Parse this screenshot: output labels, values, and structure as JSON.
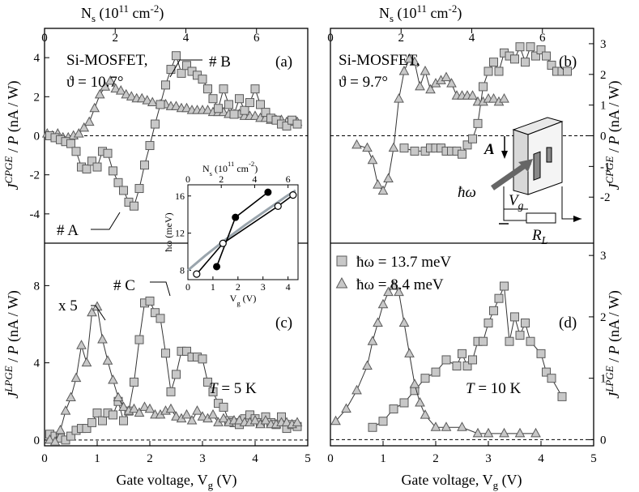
{
  "figure": {
    "top_axis_label": "N_s (10^11 cm^-2)",
    "bottom_axis_label": "Gate voltage, V_g (V)",
    "left_top_ylabel": "J CPGE / P (nA / W)",
    "left_bottom_ylabel": "J LPGE / P (nA / W)",
    "right_top_ylabel": "J CPGE / P (nA / W)",
    "right_bottom_ylabel": "J LPGE / P (nA / W)",
    "legend_sq": "ħω = 13.7 meV",
    "legend_tri": "ħω = 8.4 meV"
  },
  "chart_data": [
    {
      "id": "a",
      "type": "scatter",
      "panel_label": "(a)",
      "title": "Si-MOSFET,",
      "subtitle": "ϑ = 10.7°",
      "annotations": [
        "# B",
        "# A"
      ],
      "xlim": [
        0,
        5
      ],
      "ylim": [
        -5.5,
        5.5
      ],
      "x_ticks": [
        "0",
        "1",
        "2",
        "3",
        "4",
        "5"
      ],
      "y_ticks": [
        "-4",
        "-2",
        "0",
        "2",
        "4"
      ],
      "top_ticks": [
        "0",
        "2",
        "4",
        "6"
      ],
      "series": [
        {
          "name": "#A (triangles)",
          "marker": "triangle",
          "x": [
            0.05,
            0.15,
            0.25,
            0.35,
            0.45,
            0.55,
            0.65,
            0.75,
            0.85,
            0.95,
            1.05,
            1.15,
            1.25,
            1.35,
            1.45,
            1.55,
            1.65,
            1.75,
            1.85,
            1.95,
            2.05,
            2.2,
            2.3,
            2.4,
            2.5,
            2.6,
            2.7,
            2.8,
            2.9,
            3.0,
            3.1,
            3.2,
            3.3,
            3.4,
            3.5,
            3.6,
            3.7,
            3.8,
            3.9,
            4.0,
            4.1,
            4.2,
            4.3,
            4.4,
            4.5,
            4.6,
            4.7,
            4.8
          ],
          "y": [
            0.1,
            0.0,
            0.1,
            -0.1,
            -0.1,
            0.0,
            0.1,
            0.4,
            0.7,
            1.4,
            2.1,
            2.5,
            2.8,
            2.4,
            2.3,
            2.1,
            2.0,
            1.9,
            1.9,
            1.8,
            1.7,
            1.6,
            1.6,
            1.5,
            1.5,
            1.4,
            1.4,
            1.3,
            1.3,
            1.3,
            1.3,
            1.2,
            1.2,
            1.2,
            1.1,
            1.1,
            1.1,
            1.0,
            1.0,
            1.0,
            0.9,
            0.9,
            0.8,
            0.8,
            0.8,
            0.7,
            0.7,
            0.7
          ]
        },
        {
          "name": "#B (squares)",
          "marker": "square",
          "x": [
            0.1,
            0.2,
            0.3,
            0.4,
            0.5,
            0.6,
            0.7,
            0.8,
            0.9,
            1.0,
            1.1,
            1.2,
            1.3,
            1.4,
            1.5,
            1.6,
            1.7,
            1.8,
            1.9,
            2.0,
            2.1,
            2.2,
            2.3,
            2.4,
            2.5,
            2.6,
            2.7,
            2.8,
            2.9,
            3.0,
            3.1,
            3.2,
            3.3,
            3.4,
            3.5,
            3.6,
            3.7,
            3.8,
            3.9,
            4.0,
            4.1,
            4.2,
            4.3,
            4.4,
            4.5,
            4.6,
            4.7,
            4.8
          ],
          "y": [
            0.0,
            -0.1,
            -0.2,
            -0.3,
            -0.4,
            -0.8,
            -1.6,
            -1.7,
            -1.3,
            -1.6,
            -0.8,
            -0.9,
            -1.8,
            -2.4,
            -2.8,
            -3.4,
            -3.6,
            -2.7,
            -1.5,
            -0.5,
            0.6,
            1.6,
            2.6,
            3.4,
            4.1,
            3.2,
            3.6,
            3.3,
            3.1,
            2.9,
            2.4,
            1.9,
            1.4,
            2.4,
            1.6,
            1.1,
            1.9,
            1.3,
            1.7,
            2.4,
            1.6,
            1.2,
            0.9,
            0.8,
            0.6,
            0.5,
            0.8,
            0.6
          ]
        }
      ]
    },
    {
      "id": "b",
      "type": "scatter",
      "panel_label": "(b)",
      "title": "Si-MOSFET,",
      "subtitle": "ϑ = 9.7°",
      "xlim": [
        0,
        5
      ],
      "ylim": [
        -3.5,
        3.5
      ],
      "y_ticks": [
        "-2",
        "-1",
        "0",
        "1",
        "2",
        "3"
      ],
      "top_ticks": [
        "0",
        "2",
        "4",
        "6"
      ],
      "series": [
        {
          "name": "13.7 meV",
          "marker": "square",
          "x": [
            1.4,
            1.6,
            1.8,
            1.9,
            2.0,
            2.1,
            2.2,
            2.3,
            2.4,
            2.5,
            2.6,
            2.7,
            2.8,
            2.9,
            3.0,
            3.1,
            3.2,
            3.3,
            3.4,
            3.5,
            3.6,
            3.7,
            3.8,
            3.9,
            4.0,
            4.1,
            4.2,
            4.3,
            4.4,
            4.5
          ],
          "y": [
            -0.4,
            -0.5,
            -0.5,
            -0.4,
            -0.4,
            -0.4,
            -0.5,
            -0.5,
            -0.5,
            -0.6,
            -0.3,
            -0.1,
            0.4,
            1.6,
            2.1,
            2.4,
            2.1,
            2.7,
            2.6,
            2.5,
            2.9,
            2.4,
            2.9,
            2.6,
            2.8,
            2.6,
            2.3,
            2.1,
            2.1,
            2.1
          ]
        },
        {
          "name": "8.4 meV",
          "marker": "triangle",
          "x": [
            0.5,
            0.7,
            0.8,
            0.9,
            1.0,
            1.1,
            1.2,
            1.3,
            1.4,
            1.5,
            1.6,
            1.7,
            1.8,
            1.9,
            2.0,
            2.1,
            2.2,
            2.3,
            2.4,
            2.5,
            2.6,
            2.7,
            2.8,
            2.9,
            3.0,
            3.1,
            3.2,
            3.3
          ],
          "y": [
            -0.3,
            -0.4,
            -0.8,
            -1.6,
            -1.8,
            -1.4,
            -0.4,
            1.2,
            2.1,
            2.5,
            2.4,
            1.6,
            2.1,
            1.5,
            1.7,
            1.8,
            1.9,
            1.7,
            1.3,
            1.3,
            1.3,
            1.3,
            1.1,
            1.1,
            1.2,
            1.2,
            1.1,
            1.2
          ]
        }
      ]
    },
    {
      "id": "c",
      "type": "scatter",
      "panel_label": "(c)",
      "annotations": [
        "# C",
        "x 5",
        "T = 5 K"
      ],
      "xlim": [
        0,
        5
      ],
      "ylim": [
        -0.3,
        10.2
      ],
      "x_ticks": [
        "0",
        "1",
        "2",
        "3",
        "4",
        "5"
      ],
      "y_ticks": [
        "0",
        "4",
        "8"
      ],
      "series": [
        {
          "name": "#C (squares)",
          "marker": "square",
          "x": [
            0.1,
            0.2,
            0.3,
            0.4,
            0.5,
            0.6,
            0.7,
            0.8,
            0.9,
            1.0,
            1.1,
            1.2,
            1.3,
            1.4,
            1.5,
            1.6,
            1.7,
            1.8,
            1.9,
            2.0,
            2.1,
            2.2,
            2.3,
            2.4,
            2.5,
            2.6,
            2.7,
            2.8,
            2.9,
            3.0,
            3.1,
            3.2,
            3.3,
            3.4,
            3.5,
            3.6,
            3.7,
            3.8,
            3.9,
            4.0,
            4.1,
            4.2,
            4.3,
            4.4,
            4.5,
            4.6,
            4.7,
            4.8
          ],
          "y": [
            0.3,
            0.2,
            0.1,
            0.0,
            0.2,
            0.5,
            0.6,
            0.6,
            0.9,
            1.4,
            1.0,
            1.4,
            1.3,
            2.0,
            1.0,
            1.5,
            3.0,
            5.2,
            7.1,
            7.2,
            6.6,
            6.3,
            4.5,
            2.5,
            3.4,
            4.6,
            4.6,
            4.3,
            4.3,
            4.2,
            3.0,
            2.5,
            1.9,
            1.7,
            1.0,
            0.9,
            0.8,
            1.1,
            1.3,
            1.1,
            0.9,
            1.2,
            0.9,
            0.8,
            1.2,
            0.6,
            0.8,
            0.7
          ]
        },
        {
          "name": "x5 (triangles)",
          "marker": "triangle",
          "x": [
            0.1,
            0.2,
            0.3,
            0.4,
            0.5,
            0.6,
            0.7,
            0.8,
            0.9,
            1.0,
            1.1,
            1.2,
            1.3,
            1.4,
            1.5,
            1.6,
            1.7,
            1.8,
            1.9,
            2.0,
            2.1,
            2.2,
            2.3,
            2.4,
            2.5,
            2.6,
            2.7,
            2.8,
            2.9,
            3.0,
            3.1,
            3.2,
            3.3,
            3.4,
            3.5,
            3.6,
            3.7,
            3.8,
            3.9,
            4.0,
            4.1,
            4.2,
            4.3,
            4.4,
            4.5,
            4.6,
            4.7,
            4.8
          ],
          "y": [
            0.0,
            -0.1,
            0.5,
            1.5,
            2.2,
            3.2,
            4.9,
            4.0,
            6.6,
            6.9,
            5.2,
            4.1,
            3.1,
            2.2,
            1.7,
            1.5,
            1.6,
            1.4,
            1.7,
            1.6,
            1.3,
            1.3,
            1.5,
            1.6,
            1.2,
            1.1,
            1.3,
            1.0,
            1.5,
            1.2,
            1.1,
            1.3,
            0.9,
            1.1,
            0.9,
            1.0,
            1.0,
            0.9,
            0.9,
            1.0,
            0.8,
            1.0,
            0.8,
            0.8,
            0.9,
            0.9,
            0.8,
            0.9
          ]
        }
      ]
    },
    {
      "id": "d",
      "type": "scatter",
      "panel_label": "(d)",
      "annotations": [
        "T = 10 K"
      ],
      "xlim": [
        0,
        5
      ],
      "ylim": [
        -0.1,
        3.2
      ],
      "x_ticks": [
        "0",
        "1",
        "2",
        "3",
        "4",
        "5"
      ],
      "y_ticks": [
        "0",
        "1",
        "2",
        "3"
      ],
      "series": [
        {
          "name": "13.7 meV",
          "marker": "square",
          "x": [
            0.8,
            1.0,
            1.2,
            1.4,
            1.6,
            1.8,
            2.0,
            2.2,
            2.4,
            2.5,
            2.6,
            2.7,
            2.8,
            2.9,
            3.0,
            3.1,
            3.2,
            3.3,
            3.4,
            3.5,
            3.6,
            3.7,
            3.8,
            4.0,
            4.1,
            4.2,
            4.4
          ],
          "y": [
            0.2,
            0.3,
            0.5,
            0.6,
            0.8,
            1.0,
            1.1,
            1.3,
            1.2,
            1.4,
            1.2,
            1.3,
            1.6,
            1.6,
            1.9,
            2.1,
            2.3,
            2.5,
            1.6,
            2.0,
            1.7,
            1.9,
            1.6,
            1.4,
            1.1,
            1.0,
            0.7
          ]
        },
        {
          "name": "8.4 meV",
          "marker": "triangle",
          "x": [
            0.1,
            0.3,
            0.5,
            0.7,
            0.8,
            0.9,
            1.0,
            1.1,
            1.2,
            1.3,
            1.4,
            1.5,
            1.6,
            1.7,
            1.8,
            2.0,
            2.2,
            2.5,
            2.8,
            3.0,
            3.3,
            3.6,
            3.9
          ],
          "y": [
            0.3,
            0.5,
            0.8,
            1.2,
            1.6,
            1.9,
            2.2,
            2.4,
            2.5,
            2.4,
            1.9,
            1.4,
            0.9,
            0.6,
            0.4,
            0.2,
            0.2,
            0.2,
            0.1,
            0.1,
            0.1,
            0.1,
            0.1
          ]
        }
      ]
    },
    {
      "id": "inset",
      "type": "line",
      "xlabel": "V_g (V)",
      "ylabel": "ħω (meV)",
      "top_label": "N_s (10^11 cm^-2)",
      "xlim": [
        0,
        4.4
      ],
      "ylim": [
        7,
        17.2
      ],
      "x_ticks": [
        "0",
        "1",
        "2",
        "3",
        "4"
      ],
      "y_ticks": [
        "8",
        "12",
        "16"
      ],
      "top_ticks": [
        "0",
        "2",
        "4",
        "6"
      ],
      "series": [
        {
          "name": "filled",
          "marker": "filled-circle",
          "x": [
            1.15,
            1.9,
            3.2
          ],
          "y": [
            8.4,
            13.7,
            16.4
          ]
        },
        {
          "name": "open",
          "marker": "open-circle",
          "x": [
            0.35,
            1.4,
            3.6,
            4.2
          ],
          "y": [
            7.6,
            10.9,
            14.9,
            16.1
          ]
        },
        {
          "name": "theory",
          "marker": "none",
          "x": [
            0,
            0.7,
            1.5,
            2.3,
            3.1,
            3.9,
            4.3
          ],
          "y": [
            8.0,
            9.6,
            11.3,
            12.9,
            14.4,
            15.9,
            16.6
          ]
        }
      ]
    }
  ],
  "circuit": {
    "vector": "A",
    "photon": "ħω",
    "gate": "V_g",
    "load": "R_L"
  }
}
